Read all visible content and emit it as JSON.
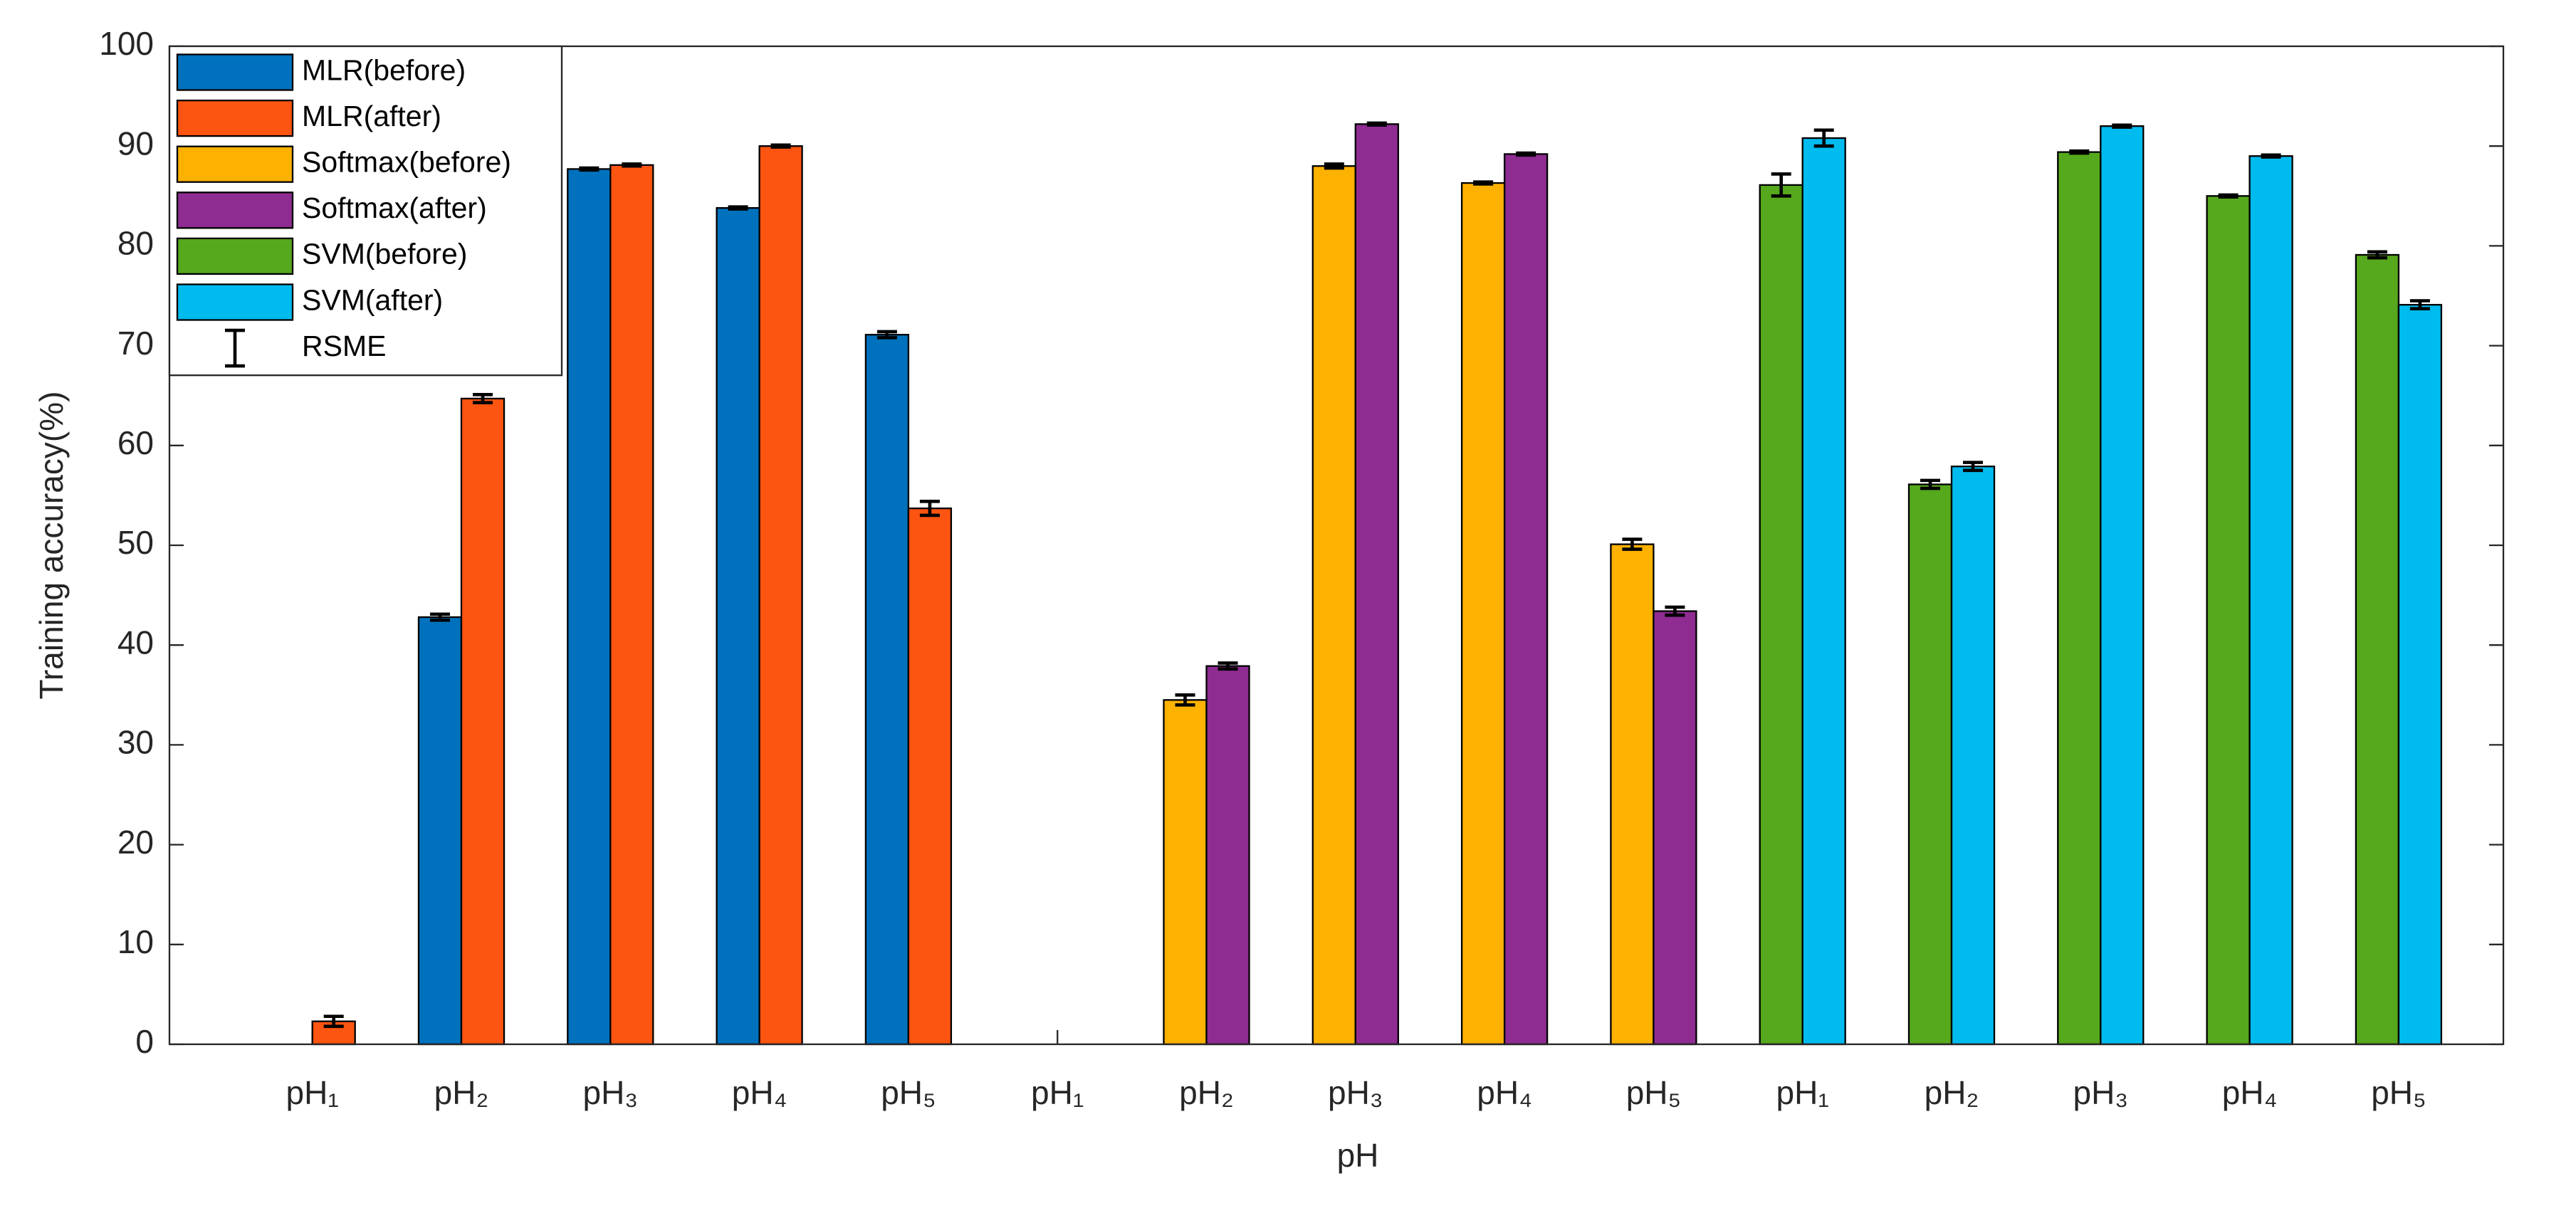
{
  "chart_data": {
    "type": "bar",
    "x_label": "pH",
    "y_label": "Training accuracy(%)",
    "categories": [
      "pH₁",
      "pH₂",
      "pH₃",
      "pH₄",
      "pH₅",
      "pH₁",
      "pH₂",
      "pH₃",
      "pH₄",
      "pH₅",
      "pH₁",
      "pH₂",
      "pH₃",
      "pH₄",
      "pH₅"
    ],
    "series": [
      {
        "name": "MLR(before)",
        "color": "#0072bd",
        "values": [
          null,
          42.8,
          87.7,
          83.8,
          71.1,
          null,
          null,
          null,
          null,
          null,
          null,
          null,
          null,
          null,
          null
        ],
        "errors": [
          null,
          0.3,
          0.1,
          0.1,
          0.3,
          null,
          null,
          null,
          null,
          null,
          null,
          null,
          null,
          null,
          null
        ]
      },
      {
        "name": "MLR(after)",
        "color": "#fc5411",
        "values": [
          2.3,
          64.7,
          88.1,
          90.0,
          53.7,
          null,
          null,
          null,
          null,
          null,
          null,
          null,
          null,
          null,
          null
        ],
        "errors": [
          0.5,
          0.4,
          0.1,
          0.1,
          0.7,
          null,
          null,
          null,
          null,
          null,
          null,
          null,
          null,
          null,
          null
        ]
      },
      {
        "name": "Softmax(before)",
        "color": "#fdb100",
        "values": [
          null,
          null,
          null,
          null,
          null,
          null,
          34.5,
          88.0,
          86.3,
          50.1,
          null,
          null,
          null,
          null,
          null
        ],
        "errors": [
          null,
          null,
          null,
          null,
          null,
          null,
          0.5,
          0.2,
          0.1,
          0.5,
          null,
          null,
          null,
          null,
          null
        ]
      },
      {
        "name": "Softmax(after)",
        "color": "#8e2c92",
        "values": [
          null,
          null,
          null,
          null,
          null,
          null,
          37.9,
          92.2,
          89.2,
          43.4,
          null,
          null,
          null,
          null,
          null
        ],
        "errors": [
          null,
          null,
          null,
          null,
          null,
          null,
          0.3,
          0.1,
          0.1,
          0.4,
          null,
          null,
          null,
          null,
          null
        ]
      },
      {
        "name": "SVM(before)",
        "color": "#56a81d",
        "values": [
          null,
          null,
          null,
          null,
          null,
          null,
          null,
          null,
          null,
          null,
          86.1,
          56.1,
          89.4,
          85.0,
          79.1
        ],
        "errors": [
          null,
          null,
          null,
          null,
          null,
          null,
          null,
          null,
          null,
          null,
          1.1,
          0.4,
          0.1,
          0.1,
          0.3
        ]
      },
      {
        "name": "SVM(after)",
        "color": "#00bbee",
        "values": [
          null,
          null,
          null,
          null,
          null,
          null,
          null,
          null,
          null,
          null,
          90.8,
          57.9,
          92.0,
          89.0,
          74.1
        ],
        "errors": [
          null,
          null,
          null,
          null,
          null,
          null,
          null,
          null,
          null,
          null,
          0.8,
          0.4,
          0.1,
          0.1,
          0.4
        ]
      }
    ],
    "error_label": "RSME",
    "ylim": [
      0,
      100
    ],
    "yticks": [
      0,
      10,
      20,
      30,
      40,
      50,
      60,
      70,
      80,
      90,
      100
    ],
    "legend": "upper left"
  }
}
